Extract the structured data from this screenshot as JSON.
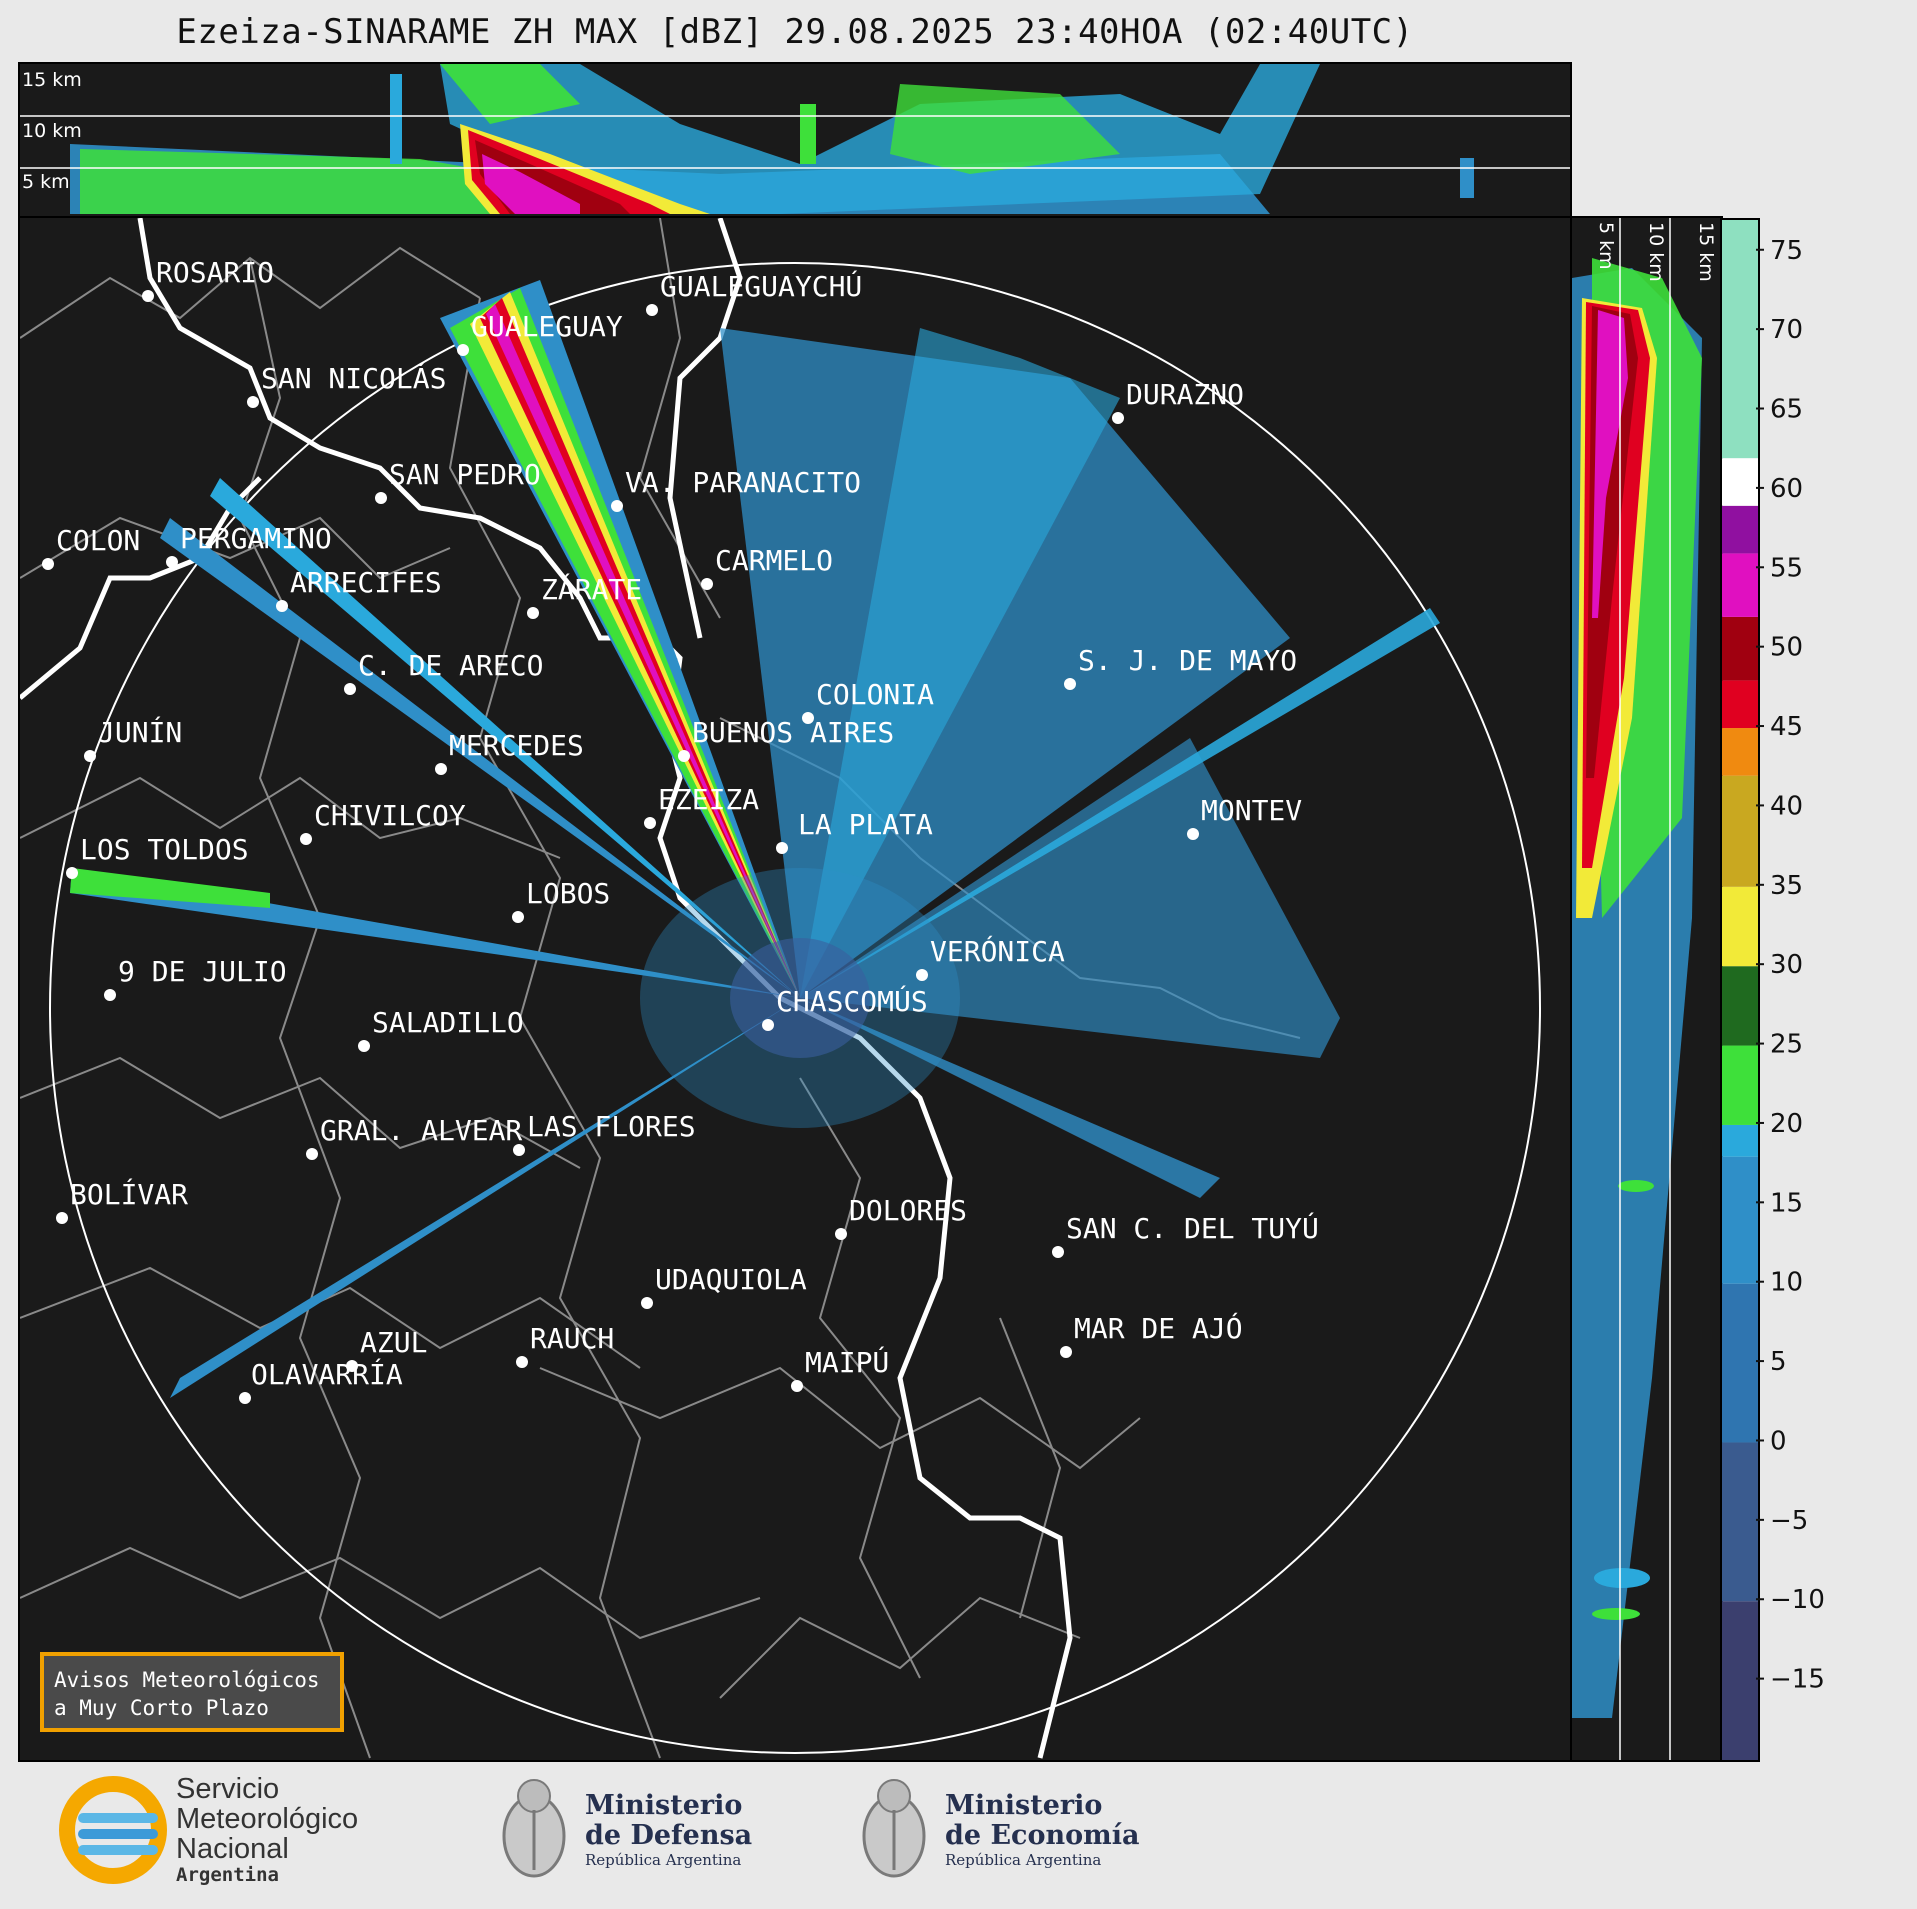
{
  "title": "Ezeiza-SINARAME ZH MAX [dBZ] 29.08.2025 23:40HOA (02:40UTC)",
  "top_panel": {
    "km_labels": [
      "15 km",
      "10 km",
      "5 km"
    ]
  },
  "right_panel": {
    "km_labels": [
      "5 km",
      "10 km",
      "15 km"
    ]
  },
  "colorbar": {
    "ticks": [
      "75",
      "70",
      "65",
      "60",
      "55",
      "50",
      "45",
      "40",
      "35",
      "30",
      "25",
      "20",
      "15",
      "10",
      "5",
      "0",
      "−5",
      "−10",
      "−15"
    ],
    "range": [
      -20,
      77
    ],
    "colors": {
      "low": "#3b3f6e",
      "blue": "#2f8fc8",
      "cyan": "#2aa9dc",
      "green": "#3ee03a",
      "darkgreen": "#1f6a1f",
      "yellow": "#f2ea38",
      "orange": "#f08a10",
      "red": "#e00020",
      "darkred": "#a00010",
      "magenta": "#e010c0",
      "purple": "#9010a0",
      "white": "#ffffff",
      "mint": "#8ee0c0"
    }
  },
  "cities": [
    {
      "name": "ROSARIO"
    },
    {
      "name": "GUALEGUAYCHÚ"
    },
    {
      "name": "GUALEGUAY"
    },
    {
      "name": "SAN NICOLÁS"
    },
    {
      "name": "DURAZNO"
    },
    {
      "name": "SAN PEDRO"
    },
    {
      "name": "VA. PARANACITO"
    },
    {
      "name": "COLON"
    },
    {
      "name": "PERGAMINO"
    },
    {
      "name": "CARMELO"
    },
    {
      "name": "ARRECIFES"
    },
    {
      "name": "ZÁRATE"
    },
    {
      "name": "S. J. DE MAYO"
    },
    {
      "name": "C. DE ARECO"
    },
    {
      "name": "COLONIA"
    },
    {
      "name": "JUNÍN"
    },
    {
      "name": "BUENOS AIRES"
    },
    {
      "name": "MERCEDES"
    },
    {
      "name": "EZEIZA"
    },
    {
      "name": "MONTEV"
    },
    {
      "name": "CHIVILCOY"
    },
    {
      "name": "LA PLATA"
    },
    {
      "name": "LOS TOLDOS"
    },
    {
      "name": "LOBOS"
    },
    {
      "name": "VERÓNICA"
    },
    {
      "name": "9 DE JULIO"
    },
    {
      "name": "CHASCOMÚS"
    },
    {
      "name": "SALADILLO"
    },
    {
      "name": "GRAL. ALVEAR"
    },
    {
      "name": "LAS FLORES"
    },
    {
      "name": "BOLÍVAR"
    },
    {
      "name": "DOLORES"
    },
    {
      "name": "SAN C. DEL TUYÚ"
    },
    {
      "name": "UDAQUIOLA"
    },
    {
      "name": "MAR DE AJÓ"
    },
    {
      "name": "AZUL"
    },
    {
      "name": "RAUCH"
    },
    {
      "name": "OLAVARRÍA"
    },
    {
      "name": "MAIPÚ"
    }
  ],
  "avisos": {
    "line1": "Avisos Meteorológicos",
    "line2": "a Muy Corto Plazo"
  },
  "logos": {
    "smn": {
      "line1": "Servicio",
      "line2": "Meteorológico",
      "line3": "Nacional",
      "line4": "Argentina"
    },
    "defensa": {
      "line1": "Ministerio",
      "line2": "de Defensa",
      "line3": "República Argentina"
    },
    "economia": {
      "line1": "Ministerio",
      "line2": "de Economía",
      "line3": "República Argentina"
    }
  }
}
